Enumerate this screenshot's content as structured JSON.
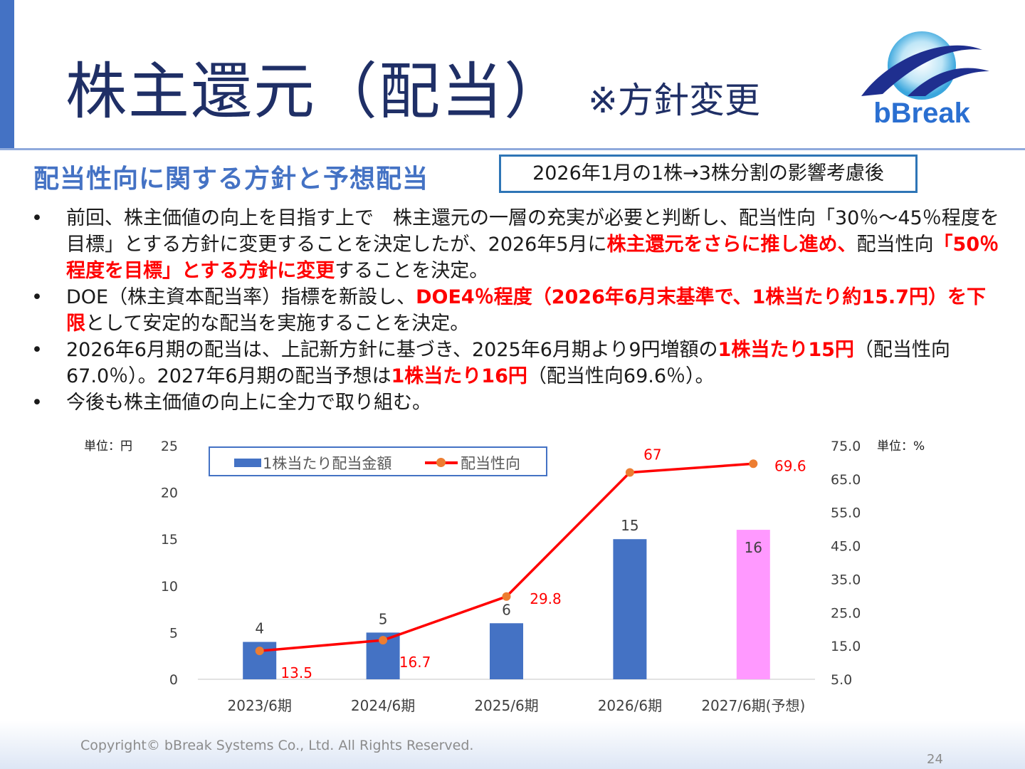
{
  "header": {
    "title": "株主還元（配当）",
    "note": "※方針変更",
    "logo_text": "bBreak",
    "accent_color": "#4472c4"
  },
  "section": {
    "title": "配当性向に関する方針と予想配当",
    "split_note": "2026年1月の1株→3株分割の影響考慮後"
  },
  "bullets": [
    {
      "marker": "•",
      "segments": [
        {
          "text": "前回、株主価値の向上を目指す上で　株主還元の一層の充実が必要と判断し、配当性向「30％～45％程度を目標」とする方針に変更することを決定したが、2026年5月に",
          "emph": false
        },
        {
          "text": "株主還元をさらに推し進め、",
          "emph": true
        },
        {
          "text": "配当性向",
          "emph": false
        },
        {
          "text": "「50％程度を目標」とする方針に変更",
          "emph": true
        },
        {
          "text": "することを決定。",
          "emph": false
        }
      ]
    },
    {
      "marker": "•",
      "segments": [
        {
          "text": "DOE（株主資本配当率）指標を新設し、",
          "emph": false
        },
        {
          "text": "DOE4％程度（2026年6月末基準で、1株当たり約15.7円）を下限",
          "emph": true
        },
        {
          "text": "として安定的な配当を実施することを決定。",
          "emph": false
        }
      ]
    },
    {
      "marker": "•",
      "segments": [
        {
          "text": "2026年6月期の配当は、上記新方針に基づき、2025年6月期より9円増額の",
          "emph": false
        },
        {
          "text": "1株当たり15円",
          "emph": true
        },
        {
          "text": "（配当性向67.0％）。2027年6月期の配当予想は",
          "emph": false
        },
        {
          "text": "1株当たり16円",
          "emph": true
        },
        {
          "text": "（配当性向69.6％）。",
          "emph": false
        }
      ]
    },
    {
      "marker": "•",
      "segments": [
        {
          "text": "今後も株主価値の向上に全力で取り組む。",
          "emph": false
        }
      ]
    }
  ],
  "chart_data": {
    "type": "bar",
    "categories": [
      "2023/6期",
      "2024/6期",
      "2025/6期",
      "2026/6期",
      "2027/6期(予想)"
    ],
    "series": [
      {
        "name": "1株当たり配当金額",
        "type": "bar",
        "axis": "left",
        "values": [
          4,
          5,
          6,
          15,
          16
        ],
        "labels": [
          "4",
          "5",
          "6",
          "15",
          "16"
        ],
        "colors": [
          "#4472c4",
          "#4472c4",
          "#4472c4",
          "#4472c4",
          "#ff99ff"
        ]
      },
      {
        "name": "配当性向",
        "type": "line",
        "axis": "right",
        "values": [
          13.5,
          16.7,
          29.8,
          67.0,
          69.6
        ],
        "labels": [
          "13.5",
          "16.7",
          "29.8",
          "67",
          "69.6"
        ],
        "color": "#ff0000",
        "marker_color": "#ed7d31"
      }
    ],
    "left_axis": {
      "unit_label": "単位：円",
      "ticks": [
        "0",
        "5",
        "10",
        "15",
        "20",
        "25"
      ],
      "ylim": [
        0,
        25
      ]
    },
    "right_axis": {
      "unit_label": "単位：%",
      "ticks": [
        "5.0",
        "15.0",
        "25.0",
        "35.0",
        "45.0",
        "55.0",
        "65.0",
        "75.0"
      ],
      "ylim": [
        5,
        75
      ]
    },
    "legend": "top-left",
    "grid": false
  },
  "footer": {
    "copyright": "Copyright© bBreak Systems Co., Ltd. All Rights Reserved.",
    "page": "24"
  }
}
